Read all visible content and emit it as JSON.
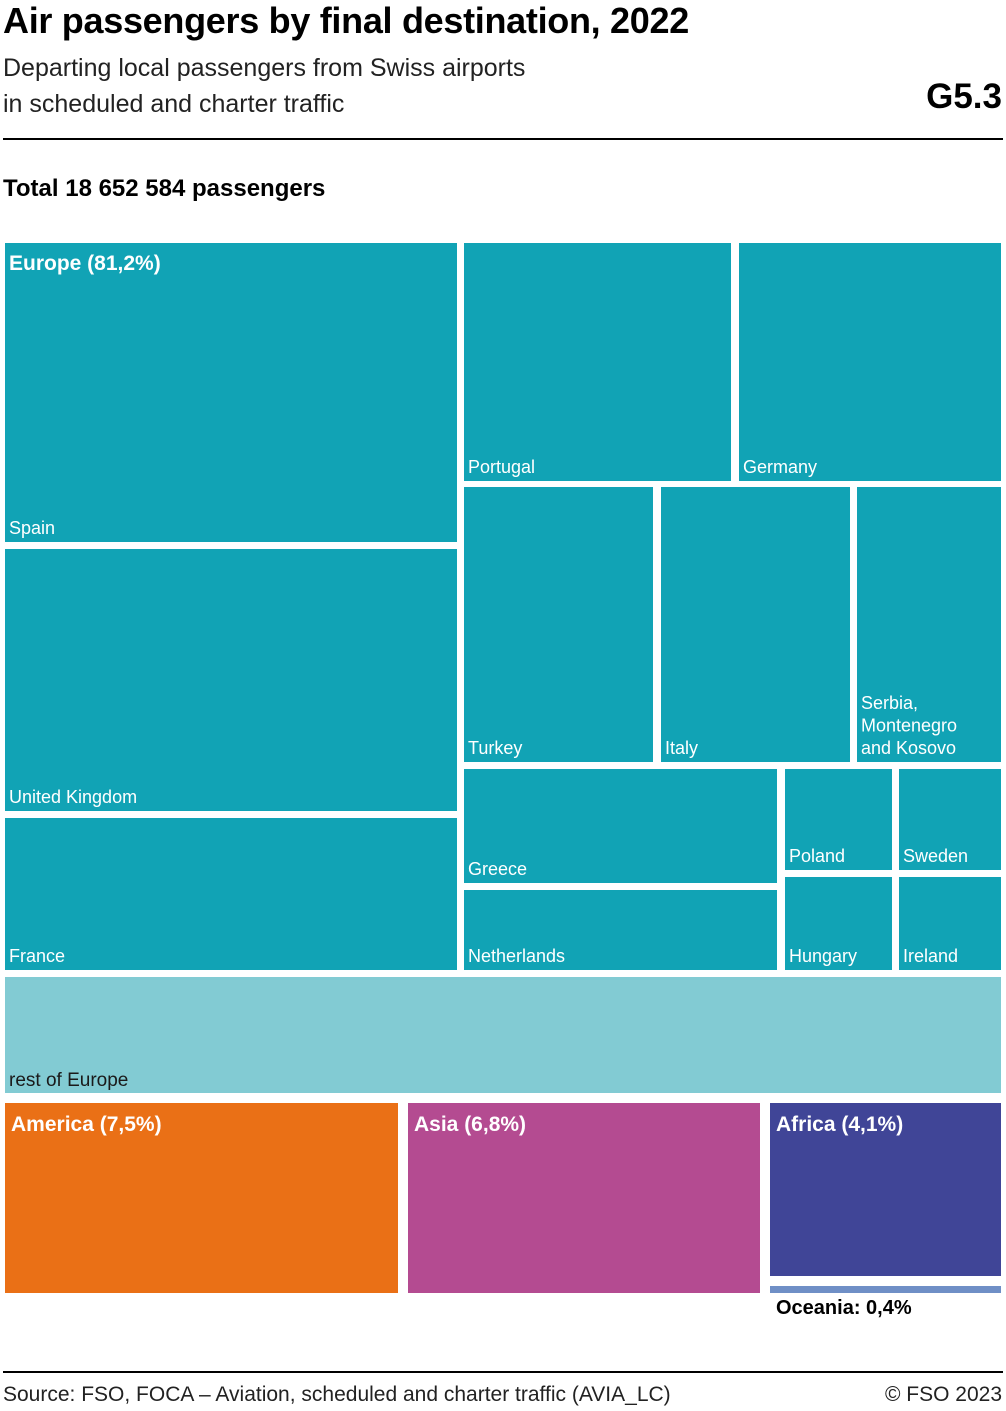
{
  "header": {
    "title": "Air passengers by final destination, 2022",
    "subtitle_line1": "Departing local passengers from Swiss airports",
    "subtitle_line2": "in scheduled and charter traffic",
    "code": "G5.3"
  },
  "total_label": "Total 18 652 584 passengers",
  "colors": {
    "europe": "#11a3b5",
    "rest_of_europe": "#82cbd3",
    "america": "#ea7016",
    "asia": "#b44b91",
    "africa": "#404597",
    "oceania": "#6f8fc6"
  },
  "chart_data": {
    "type": "treemap",
    "title": "Air passengers by final destination, 2022",
    "total_passengers": 18652584,
    "groups": [
      {
        "name": "Europe",
        "label": "Europe (81,2%)",
        "share_percent": 81.2,
        "color": "#11a3b5",
        "children": [
          {
            "name": "Spain"
          },
          {
            "name": "United Kingdom"
          },
          {
            "name": "France"
          },
          {
            "name": "Portugal"
          },
          {
            "name": "Germany"
          },
          {
            "name": "Turkey"
          },
          {
            "name": "Italy"
          },
          {
            "name": "Serbia, Montenegro and Kosovo"
          },
          {
            "name": "Greece"
          },
          {
            "name": "Netherlands"
          },
          {
            "name": "Poland"
          },
          {
            "name": "Sweden"
          },
          {
            "name": "Hungary"
          },
          {
            "name": "Ireland"
          },
          {
            "name": "rest of Europe"
          }
        ]
      },
      {
        "name": "America",
        "label": "America (7,5%)",
        "share_percent": 7.5,
        "color": "#ea7016"
      },
      {
        "name": "Asia",
        "label": "Asia (6,8%)",
        "share_percent": 6.8,
        "color": "#b44b91"
      },
      {
        "name": "Africa",
        "label": "Africa (4,1%)",
        "share_percent": 4.1,
        "color": "#404597"
      },
      {
        "name": "Oceania",
        "label": "Oceania: 0,4%",
        "share_percent": 0.4,
        "color": "#6f8fc6"
      }
    ]
  },
  "footer": {
    "source": "Source: FSO, FOCA – Aviation, scheduled and charter traffic (AVIA_LC)",
    "copyright": "© FSO 2023"
  }
}
